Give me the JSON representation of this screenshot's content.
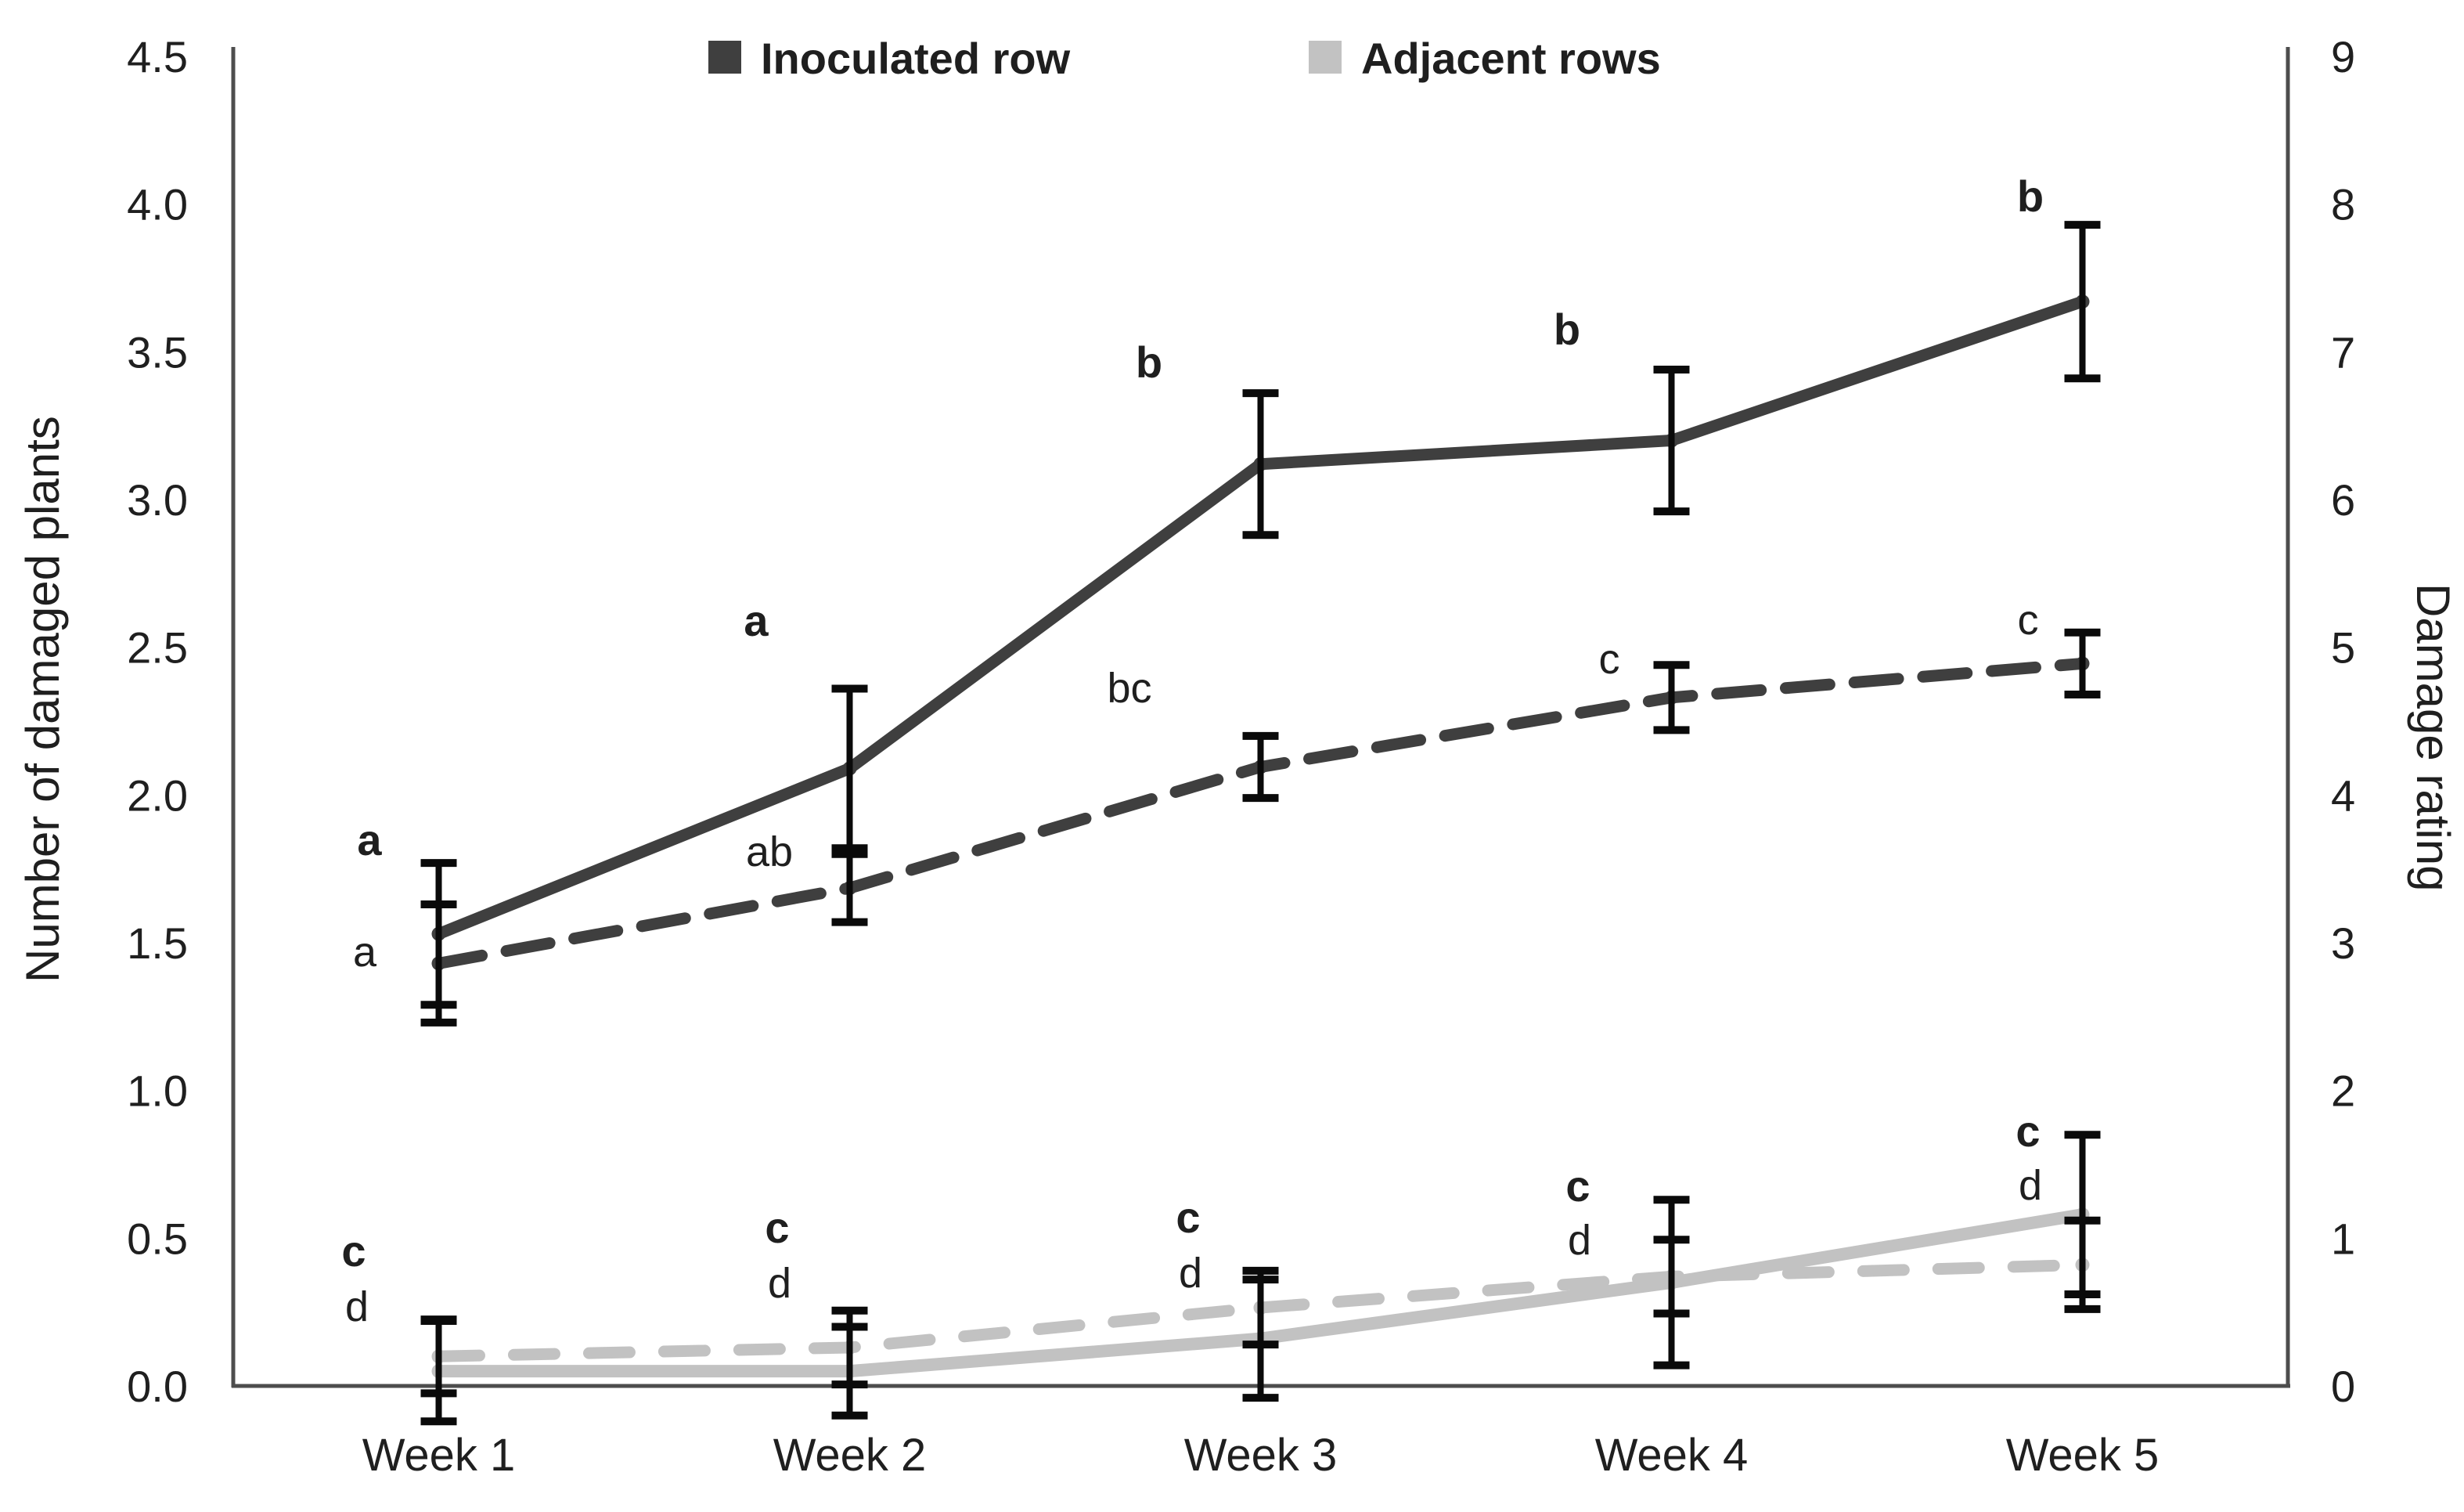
{
  "chart_data": {
    "type": "line",
    "categories": [
      "Week 1",
      "Week 2",
      "Week 3",
      "Week 4",
      "Week 5"
    ],
    "left_axis": {
      "label": "Number of damaged plants",
      "min": 0.0,
      "max": 4.5,
      "tick_labels": [
        "4.5",
        "4.0",
        "3.5",
        "3.0",
        "2.5",
        "2.0",
        "1.5",
        "1.0",
        "0.5",
        "0.0"
      ]
    },
    "right_axis": {
      "label": "Damage rating",
      "min": 0,
      "max": 9,
      "tick_labels": [
        "9",
        "8",
        "7",
        "6",
        "5",
        "4",
        "3",
        "2",
        "1",
        "0"
      ]
    },
    "legend": {
      "position": "top-center",
      "items": [
        {
          "label": "Inoculated row",
          "color": "#3f3f3f"
        },
        {
          "label": "Adjacent rows",
          "color": "#c2c2c2"
        }
      ]
    },
    "grid": false,
    "colors": {
      "dark": "#3f3f3f",
      "light": "#c2c2c2",
      "error_bar": "#0a0a0a",
      "axis": "#4d4d4d"
    },
    "series": [
      {
        "name": "Inoculated row - number of damaged plants",
        "axis": "left",
        "style": "solid",
        "color": "#3f3f3f",
        "values": [
          1.53,
          2.09,
          3.12,
          3.2,
          3.67
        ],
        "errors": [
          0.24,
          0.27,
          0.24,
          0.24,
          0.26
        ],
        "letters": [
          "a",
          "a",
          "b",
          "b",
          "b"
        ],
        "letters_bold": true
      },
      {
        "name": "Inoculated row - damage rating",
        "axis": "right",
        "style": "dashed",
        "color": "#3f3f3f",
        "values": [
          2.86,
          3.37,
          4.19,
          4.66,
          4.89
        ],
        "errors": [
          0.4,
          0.23,
          0.21,
          0.22,
          0.21
        ],
        "letters": [
          "a",
          "ab",
          "bc",
          "c",
          "c"
        ],
        "letters_bold": false
      },
      {
        "name": "Adjacent rows - number of damaged plants",
        "axis": "left",
        "style": "solid",
        "color": "#c2c2c2",
        "values": [
          0.05,
          0.05,
          0.16,
          0.35,
          0.58
        ],
        "errors": [
          0.17,
          0.15,
          0.2,
          0.28,
          0.27
        ],
        "letters": [
          "c",
          "c",
          "c",
          "c",
          "c"
        ],
        "letters_bold": true
      },
      {
        "name": "Adjacent rows - damage rating",
        "axis": "right",
        "style": "dashed",
        "color": "#c2c2c2",
        "values": [
          0.2,
          0.26,
          0.53,
          0.74,
          0.82
        ],
        "errors": [
          0.25,
          0.25,
          0.25,
          0.25,
          0.3
        ],
        "letters": [
          "d",
          "d",
          "d",
          "d",
          "d"
        ],
        "letters_bold": false
      }
    ]
  }
}
